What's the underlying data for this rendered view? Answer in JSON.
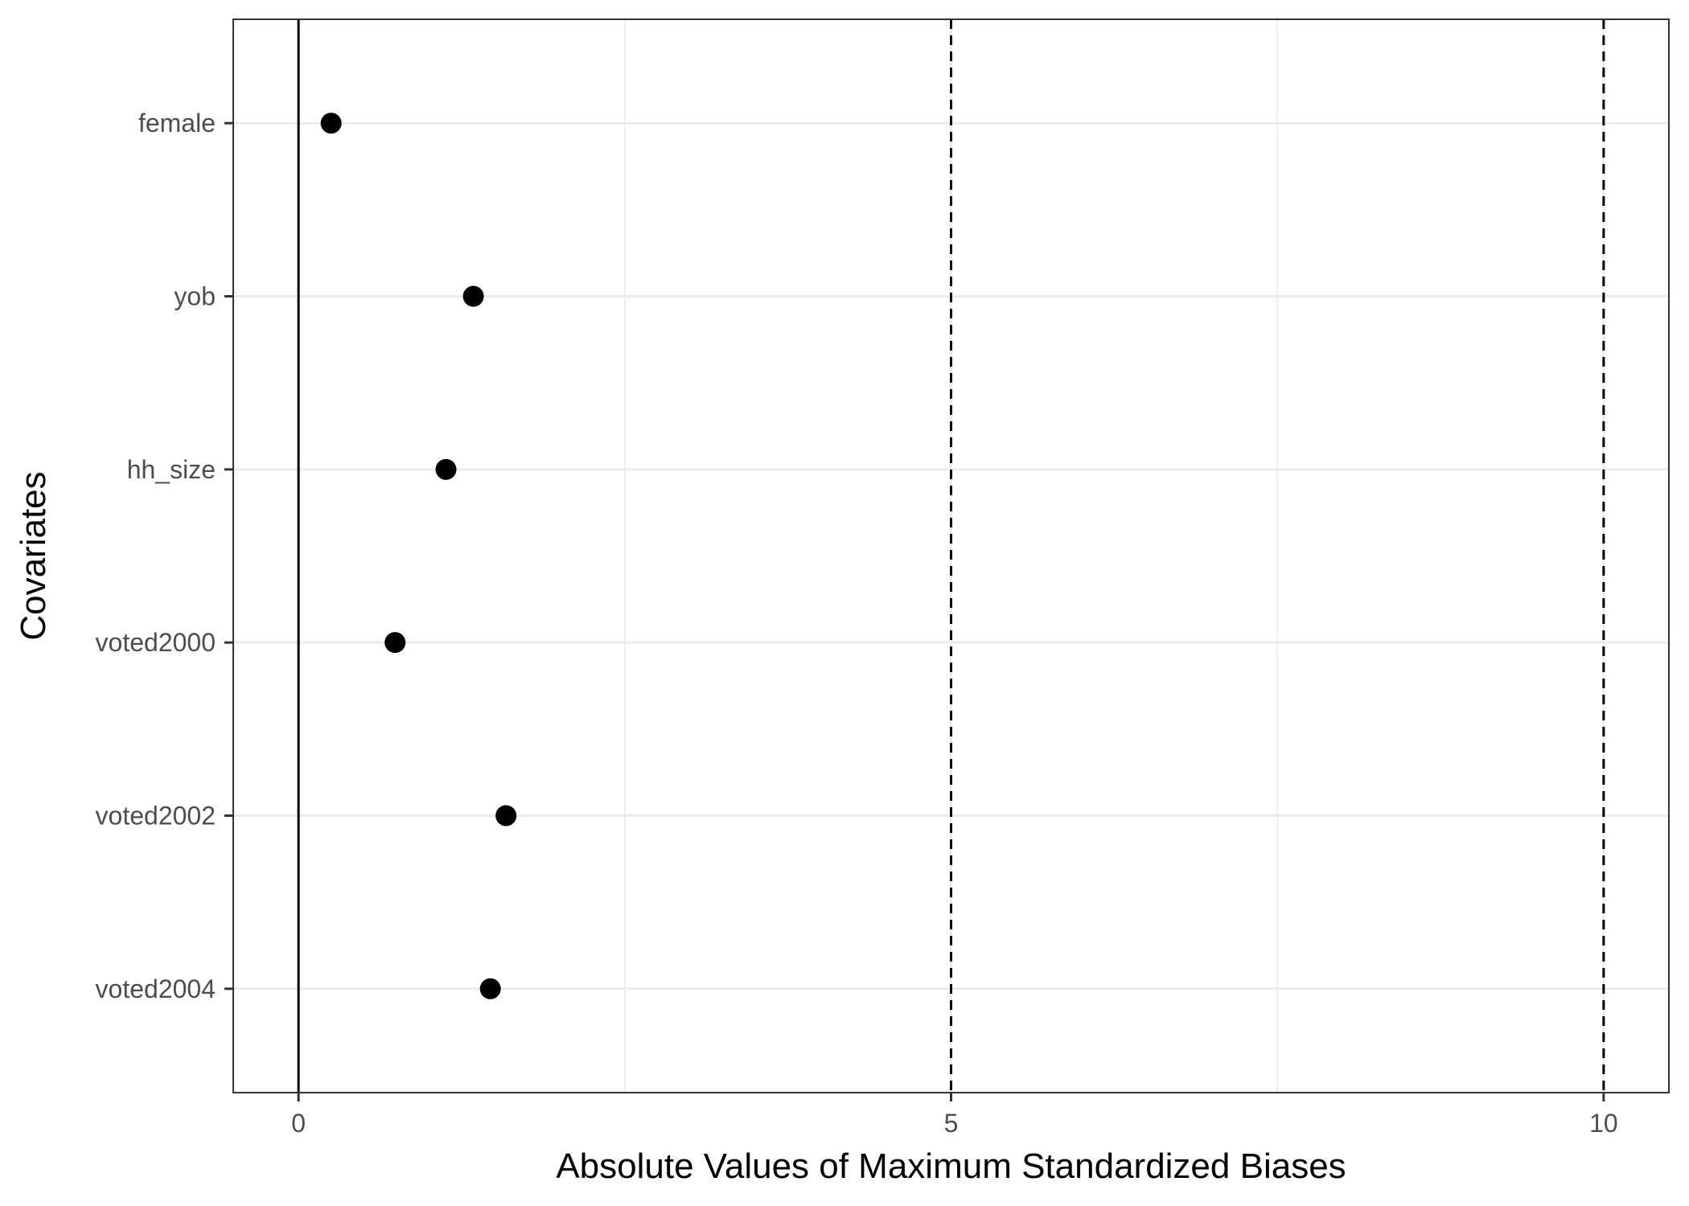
{
  "chart_data": {
    "type": "scatter",
    "title": "",
    "xlabel": "Absolute Values of Maximum Standardized Biases",
    "ylabel": "Covariates",
    "xlim": [
      -0.5,
      10.5
    ],
    "x_ticks": [
      0,
      5,
      10
    ],
    "x_tick_labels": [
      "0",
      "5",
      "10"
    ],
    "categories": [
      "female",
      "yob",
      "hh_size",
      "voted2000",
      "voted2002",
      "voted2004"
    ],
    "values": [
      0.25,
      1.34,
      1.13,
      0.74,
      1.59,
      1.47
    ],
    "reference_lines": [
      {
        "value": 0,
        "style": "solid"
      },
      {
        "value": 5,
        "style": "dashed"
      },
      {
        "value": 10,
        "style": "dashed"
      }
    ],
    "grid": true,
    "legend": "none",
    "point_color": "#000000",
    "grid_color": "#ebebeb",
    "panel_border_color": "#333333"
  }
}
